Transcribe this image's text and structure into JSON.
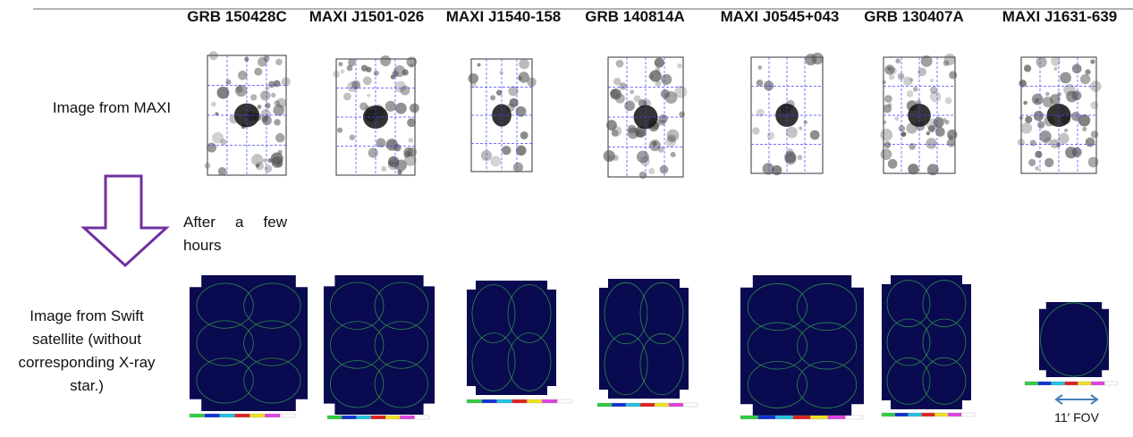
{
  "header": {
    "titles": [
      "GRB 150428C",
      "MAXI J1501-026",
      "MAXI J1540-158",
      "GRB 140814A",
      "MAXI J0545+043",
      "GRB 130407A",
      "MAXI J1631-639"
    ]
  },
  "labels": {
    "maxi": "Image from MAXI",
    "delay": "After a few hours",
    "swift": "Image from Swift satellite (without corresponding X-ray star.)",
    "fov": "11′ FOV"
  }
}
